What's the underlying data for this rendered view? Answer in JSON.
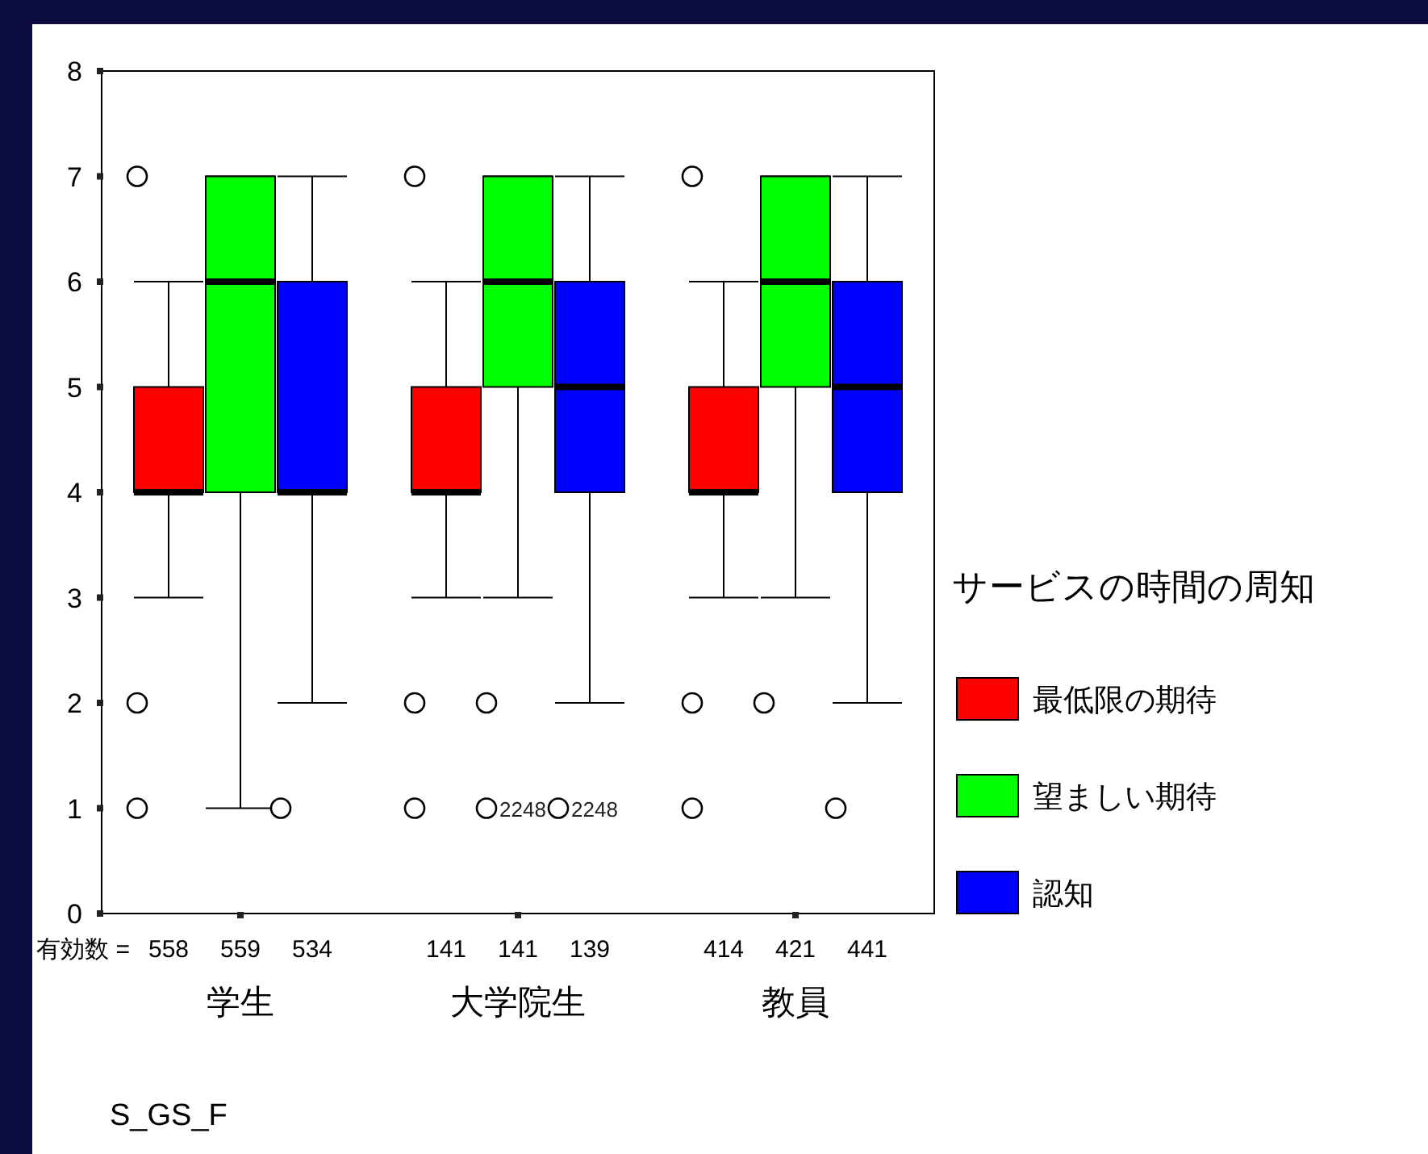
{
  "chart_data": {
    "type": "box",
    "legend_title": "サービスの時間の周知",
    "categories": [
      "学生",
      "大学院生",
      "教員"
    ],
    "ylim": [
      0,
      8
    ],
    "yticks": [
      0,
      1,
      2,
      3,
      4,
      5,
      6,
      7,
      8
    ],
    "grid": false,
    "legend": "right",
    "series": [
      {
        "name": "最低限の期待",
        "color": "#ff0000",
        "value_labels": [
          "558",
          "141",
          "414"
        ],
        "boxes": [
          {
            "low": 3,
            "q1": 4,
            "median": 4,
            "q3": 5,
            "high": 6,
            "outliers": [
              7,
              2,
              1
            ]
          },
          {
            "low": 3,
            "q1": 4,
            "median": 4,
            "q3": 5,
            "high": 6,
            "outliers": [
              7,
              2,
              1
            ]
          },
          {
            "low": 3,
            "q1": 4,
            "median": 4,
            "q3": 5,
            "high": 6,
            "outliers": [
              7,
              2,
              1
            ]
          }
        ]
      },
      {
        "name": "望ましい期待",
        "color": "#00ff00",
        "value_labels": [
          "559",
          "141",
          "421"
        ],
        "boxes": [
          {
            "low": 1,
            "q1": 4,
            "median": 6,
            "q3": 7,
            "high": 7
          },
          {
            "low": 3,
            "q1": 5,
            "median": 6,
            "q3": 7,
            "high": 7,
            "outliers": [
              2,
              1
            ]
          },
          {
            "low": 3,
            "q1": 5,
            "median": 6,
            "q3": 7,
            "high": 7,
            "outliers": [
              2
            ]
          }
        ]
      },
      {
        "name": "認知",
        "color": "#0000ff",
        "value_labels": [
          "534",
          "139",
          "441"
        ],
        "boxes": [
          {
            "low": 2,
            "q1": 4,
            "median": 4,
            "q3": 6,
            "high": 7,
            "outliers": [
              1
            ]
          },
          {
            "low": 2,
            "q1": 4,
            "median": 5,
            "q3": 6,
            "high": 7,
            "outliers": [
              1
            ]
          },
          {
            "low": 2,
            "q1": 4,
            "median": 5,
            "q3": 6,
            "high": 7,
            "outliers": [
              1
            ]
          }
        ]
      }
    ],
    "annotations": [
      "有効数 =",
      "2248",
      "2248",
      "S_GS_F"
    ]
  }
}
